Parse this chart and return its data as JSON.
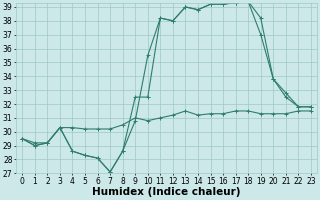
{
  "xlabel": "Humidex (Indice chaleur)",
  "x_values": [
    0,
    1,
    2,
    3,
    4,
    5,
    6,
    7,
    8,
    9,
    10,
    11,
    12,
    13,
    14,
    15,
    16,
    17,
    18,
    19,
    20,
    21,
    22,
    23
  ],
  "series1": [
    29.5,
    29.0,
    29.2,
    30.3,
    28.6,
    28.3,
    28.1,
    27.1,
    28.6,
    30.8,
    35.5,
    38.2,
    38.0,
    39.0,
    38.8,
    39.2,
    39.2,
    39.3,
    39.4,
    38.2,
    33.8,
    32.8,
    31.8,
    31.8
  ],
  "series2": [
    29.5,
    29.0,
    29.2,
    30.3,
    28.6,
    28.3,
    28.1,
    27.1,
    28.6,
    32.5,
    32.5,
    38.2,
    38.0,
    39.0,
    38.8,
    39.2,
    39.2,
    39.3,
    39.4,
    37.0,
    33.8,
    32.5,
    31.8,
    31.8
  ],
  "series3": [
    29.5,
    29.2,
    29.2,
    30.3,
    30.3,
    30.2,
    30.2,
    30.2,
    30.5,
    31.0,
    30.8,
    31.0,
    31.2,
    31.5,
    31.2,
    31.3,
    31.3,
    31.5,
    31.5,
    31.3,
    31.3,
    31.3,
    31.5,
    31.5
  ],
  "ylim": [
    27,
    39
  ],
  "xlim": [
    -0.5,
    23.5
  ],
  "line_color": "#2e7d6e",
  "bg_color": "#cce8e8",
  "grid_color": "#9fc8c8",
  "tick_fontsize": 5.5,
  "label_fontsize": 7.5
}
